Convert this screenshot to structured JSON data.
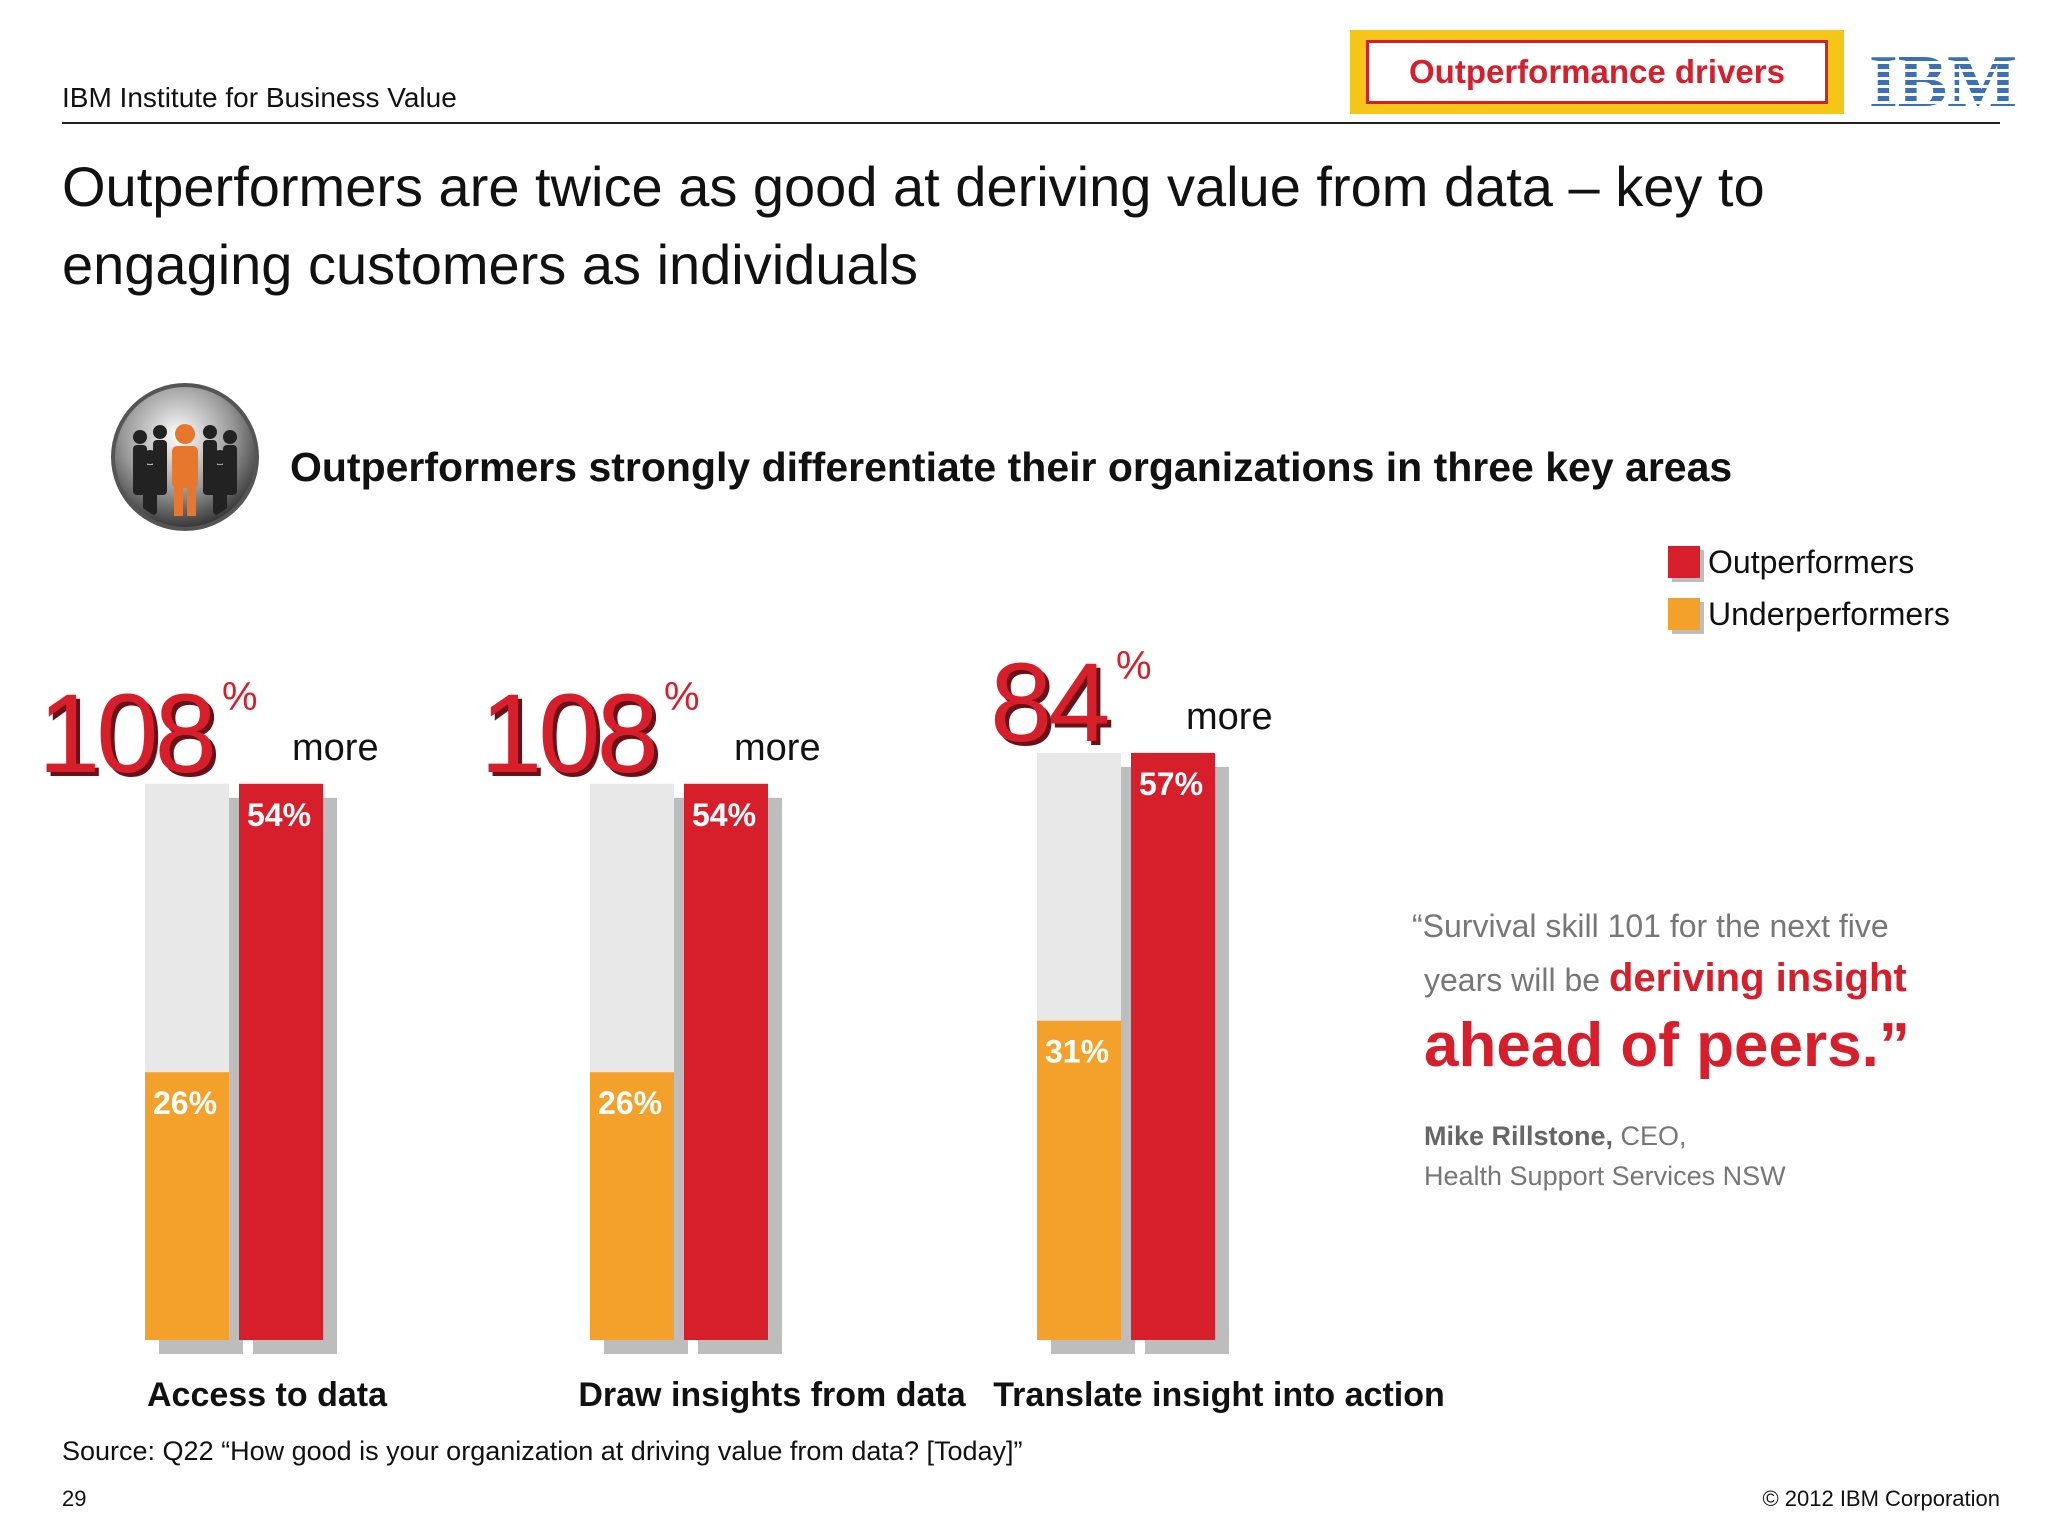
{
  "header": {
    "institute": "IBM Institute for Business Value",
    "tag": "Outperformance drivers",
    "logo": "IBM",
    "title": "Outperformers are twice as good at deriving value from data – key to engaging customers as individuals"
  },
  "subtitle": "Outperformers strongly differentiate their organizations in three key areas",
  "icon": "people-crowd-icon",
  "colors": {
    "outperformers": "#d71f2c",
    "underperformers": "#f4a12c",
    "background_bar": "#e9e8e8",
    "shadow": "#bdbdbd"
  },
  "chart_data": {
    "type": "bar",
    "categories": [
      "Access to data",
      "Draw insights from data",
      "Translate insight into action"
    ],
    "series": [
      {
        "name": "Outperformers",
        "values": [
          54,
          54,
          57
        ]
      },
      {
        "name": "Underperformers",
        "values": [
          26,
          26,
          31
        ]
      }
    ],
    "value_labels": {
      "outperformers": [
        "54%",
        "54%",
        "57%"
      ],
      "underperformers": [
        "26%",
        "26%",
        "31%"
      ]
    },
    "differences": [
      {
        "value": "108",
        "unit": "%",
        "suffix": "more"
      },
      {
        "value": "108",
        "unit": "%",
        "suffix": "more"
      },
      {
        "value": "84",
        "unit": "%",
        "suffix": "more"
      }
    ],
    "legend": {
      "placement": "top-right",
      "entries": [
        "Outperformers",
        "Underperformers"
      ]
    },
    "ylim": [
      0,
      100
    ]
  },
  "quote": {
    "line1": "“Survival skill 101 for the next five",
    "line2_plain": "years will be ",
    "line2_highlight": "deriving insight",
    "line3": "ahead of peers.”",
    "attribution_name": "Mike Rillstone,",
    "attribution_role": " CEO,",
    "attribution_org": "Health Support Services NSW"
  },
  "source": "Source:  Q22 “How good is your organization at driving value from data? [Today]”",
  "footer": {
    "page_number": "29",
    "copyright": "© 2012 IBM Corporation"
  }
}
